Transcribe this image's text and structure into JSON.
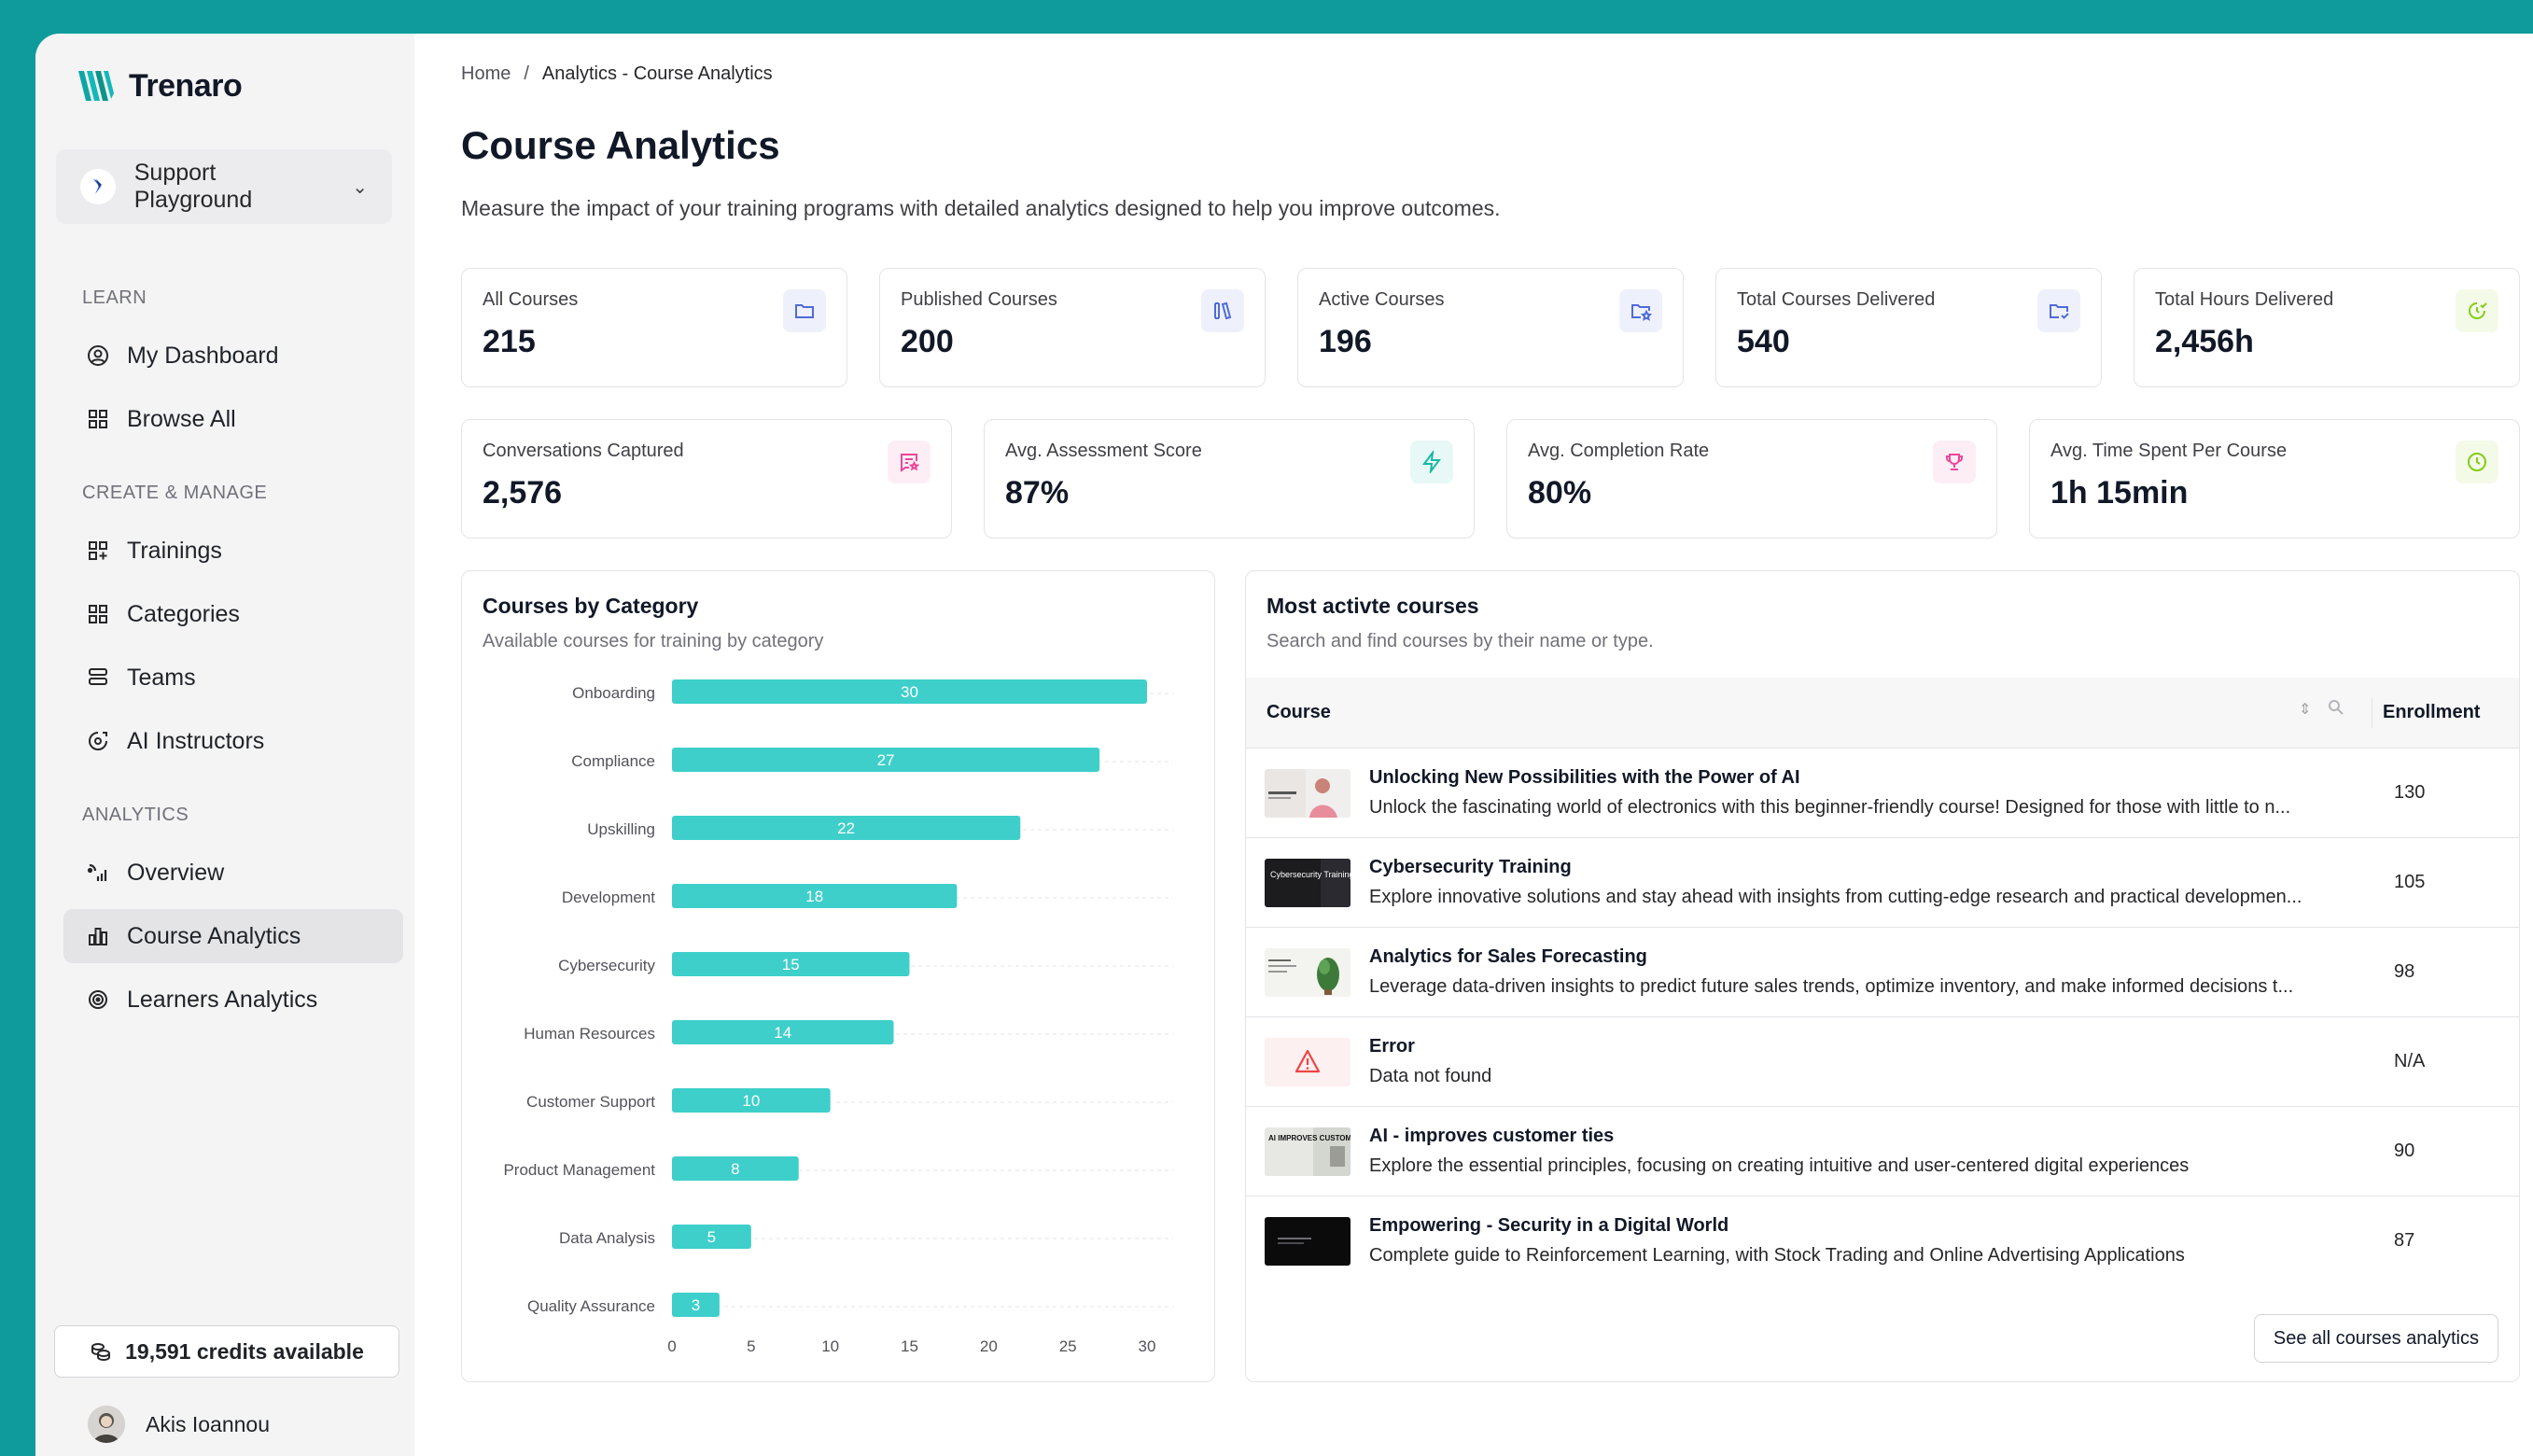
{
  "brand": {
    "name": "Trenaro"
  },
  "workspace": {
    "label": "Support Playground"
  },
  "sidebar": {
    "sections": [
      {
        "label": "LEARN",
        "items": [
          {
            "label": "My Dashboard",
            "icon": "dashboard-icon"
          },
          {
            "label": "Browse All",
            "icon": "grid-icon"
          }
        ]
      },
      {
        "label": "CREATE & MANAGE",
        "items": [
          {
            "label": "Trainings",
            "icon": "grid-plus-icon"
          },
          {
            "label": "Categories",
            "icon": "grid-icon"
          },
          {
            "label": "Teams",
            "icon": "stack-icon"
          },
          {
            "label": "AI Instructors",
            "icon": "ai-icon"
          }
        ]
      },
      {
        "label": "ANALYTICS",
        "items": [
          {
            "label": "Overview",
            "icon": "signal-icon"
          },
          {
            "label": "Course Analytics",
            "icon": "bar-chart-icon",
            "active": true
          },
          {
            "label": "Learners Analytics",
            "icon": "target-icon"
          }
        ]
      }
    ],
    "credits": "19,591 credits available",
    "user": "Akis Ioannou"
  },
  "breadcrumb": {
    "home": "Home",
    "separator": "/",
    "current": "Analytics - Course Analytics"
  },
  "page": {
    "title": "Course Analytics",
    "description": "Measure the impact of your training programs with detailed analytics designed to help you improve outcomes."
  },
  "stats_row1": [
    {
      "label": "All Courses",
      "value": "215",
      "icon": "folder-icon",
      "color": "#4f6bd8",
      "bg": "#eef1fb"
    },
    {
      "label": "Published Courses",
      "value": "200",
      "icon": "books-icon",
      "color": "#4f6bd8",
      "bg": "#eef1fb"
    },
    {
      "label": "Active Courses",
      "value": "196",
      "icon": "folder-star-icon",
      "color": "#4f6bd8",
      "bg": "#eef1fb"
    },
    {
      "label": "Total Courses Delivered",
      "value": "540",
      "icon": "folder-check-icon",
      "color": "#4f6bd8",
      "bg": "#eef1fb"
    },
    {
      "label": "Total Hours Delivered",
      "value": "2,456h",
      "icon": "clock-check-icon",
      "color": "#84cc16",
      "bg": "#f4fae8"
    }
  ],
  "stats_row2": [
    {
      "label": "Conversations Captured",
      "value": "2,576",
      "icon": "chat-star-icon",
      "color": "#ec4899",
      "bg": "#fdeef6"
    },
    {
      "label": "Avg. Assessment Score",
      "value": "87%",
      "icon": "bolt-icon",
      "color": "#14b8a6",
      "bg": "#e8f8f6"
    },
    {
      "label": "Avg. Completion Rate",
      "value": "80%",
      "icon": "trophy-icon",
      "color": "#ec4899",
      "bg": "#fdeef6"
    },
    {
      "label": "Avg. Time Spent Per Course",
      "value": "1h 15min",
      "icon": "clock-icon",
      "color": "#84cc16",
      "bg": "#f4fae8"
    }
  ],
  "category_card": {
    "title": "Courses by Category",
    "subtitle": "Available courses for training by category"
  },
  "chart_data": {
    "type": "bar",
    "orientation": "horizontal",
    "categories": [
      "Onboarding",
      "Compliance",
      "Upskilling",
      "Development",
      "Cybersecurity",
      "Human Resources",
      "Customer Support",
      "Product Management",
      "Data Analysis",
      "Quality Assurance"
    ],
    "values": [
      30,
      27,
      22,
      18,
      15,
      14,
      10,
      8,
      5,
      3
    ],
    "xlim": [
      0,
      30
    ],
    "xticks": [
      0,
      5,
      10,
      15,
      20,
      25,
      30
    ],
    "grid": "dashed horizontal",
    "bar_color": "#3ecfca",
    "data_labels": true
  },
  "courses_card": {
    "title": "Most activte courses",
    "subtitle": "Search and find courses by their name or type.",
    "col_course": "Course",
    "col_enrollment": "Enrollment",
    "rows": [
      {
        "title": "Unlocking New Possibilities with the Power of AI",
        "desc": "Unlock the fascinating world of electronics with this beginner-friendly course! Designed for those with little to n...",
        "enrollment": "130",
        "thumb": "ai-thumb"
      },
      {
        "title": "Cybersecurity Training",
        "desc": "Explore innovative solutions and stay ahead with insights from cutting-edge research and practical developmen...",
        "enrollment": "105",
        "thumb": "cyber-thumb",
        "thumb_text": "Cybersecurity Training"
      },
      {
        "title": "Analytics for Sales Forecasting",
        "desc": "Leverage data-driven insights to predict future sales trends, optimize inventory, and make informed decisions t...",
        "enrollment": "98",
        "thumb": "sales-thumb"
      },
      {
        "title": "Error",
        "desc": "Data not found",
        "enrollment": "N/A",
        "thumb": "warning-icon"
      },
      {
        "title": "AI - improves customer ties",
        "desc": "Explore the essential principles, focusing on creating intuitive and user-centered digital experiences",
        "enrollment": "90",
        "thumb": "ai-ties-thumb",
        "thumb_text": "AI IMPROVES CUSTOMER TIES"
      },
      {
        "title": "Empowering - Security in a Digital World",
        "desc": "Complete guide to Reinforcement Learning, with Stock Trading and Online Advertising Applications",
        "enrollment": "87",
        "thumb": "security-thumb"
      }
    ],
    "see_all": "See all courses analytics"
  }
}
